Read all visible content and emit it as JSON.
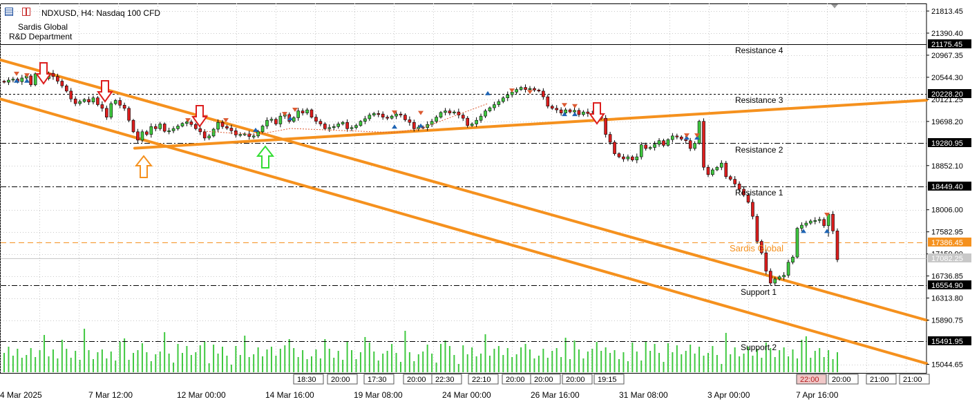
{
  "header": {
    "symbol_line": "NDXUSD, H4:  Nasdaq 100 CFD",
    "company": "Sardis Global",
    "department": "R&D Department"
  },
  "colors": {
    "bull": "#3fc83f",
    "bear": "#dc1e1e",
    "trendline": "#f5911e",
    "arrow_up": "#1e64b4",
    "arrow_down": "#dc5a32",
    "grid": "#c8c8c8"
  },
  "chart_data": {
    "type": "candlestick",
    "price_axis": {
      "min": 14900,
      "max": 21900,
      "ticks": [
        "21813.45",
        "21390.40",
        "20967.35",
        "20544.30",
        "20121.25",
        "19698.20",
        "18852.10",
        "18006.00",
        "17582.95",
        "17159.90",
        "16736.85",
        "16313.80",
        "15890.75",
        "15044.65"
      ]
    },
    "time_axis_labels": [
      "4 Mar 2025",
      "7 Mar 12:00",
      "12 Mar 00:00",
      "14 Mar 16:00",
      "19 Mar 08:00",
      "24 Mar 00:00",
      "26 Mar 16:00",
      "31 Mar 08:00",
      "3 Apr 00:00",
      "7 Apr 16:00"
    ],
    "levels": [
      {
        "name": "Resistance 4",
        "price": 21175.45,
        "label": "21175.45",
        "style": "solid"
      },
      {
        "name": "Resistance 3",
        "price": 20228.2,
        "label": "20228.20",
        "style": "dashed"
      },
      {
        "name": "Resistance 2",
        "price": 19280.95,
        "label": "19280.95",
        "style": "dashdot"
      },
      {
        "name": "Resistance 1",
        "price": 18449.4,
        "label": "18449.40",
        "style": "dashdot"
      },
      {
        "name": "Support 1",
        "price": 16554.9,
        "label": "16554.90",
        "style": "dashdot"
      },
      {
        "name": "Support 2",
        "price": 15491.95,
        "label": "15491.95",
        "style": "dashdot"
      }
    ],
    "sardis_level": {
      "name": "Sardis Global",
      "price": 17386.45,
      "label": "17386.45"
    },
    "current_price": {
      "price": 17082.25,
      "label": "17082.25"
    },
    "session_labels": [
      "18:30",
      "20:00",
      "17:30",
      "20:00",
      "22:30",
      "22:10",
      "20:00",
      "20:00",
      "20:00",
      "19:15",
      "22:00",
      "20:00",
      "21:00",
      "21:00"
    ],
    "closes": [
      20450,
      20490,
      20510,
      20460,
      20530,
      20570,
      20400,
      20610,
      20580,
      20520,
      20620,
      20560,
      20470,
      20380,
      20280,
      20130,
      20040,
      20080,
      20120,
      20070,
      20150,
      20020,
      19950,
      19780,
      20040,
      20100,
      20010,
      19950,
      19720,
      19500,
      19340,
      19500,
      19450,
      19600,
      19560,
      19650,
      19510,
      19520,
      19560,
      19610,
      19660,
      19690,
      19640,
      19560,
      19500,
      19380,
      19420,
      19550,
      19680,
      19600,
      19570,
      19520,
      19440,
      19450,
      19460,
      19410,
      19420,
      19500,
      19610,
      19720,
      19740,
      19650,
      19800,
      19830,
      19700,
      19770,
      19900,
      19860,
      19920,
      19780,
      19700,
      19650,
      19560,
      19580,
      19600,
      19650,
      19680,
      19560,
      19580,
      19620,
      19700,
      19750,
      19820,
      19850,
      19840,
      19780,
      19760,
      19800,
      19840,
      19820,
      19730,
      19680,
      19560,
      19590,
      19580,
      19640,
      19700,
      19780,
      19870,
      19900,
      19860,
      19880,
      19820,
      19760,
      19620,
      19650,
      19720,
      19800,
      19900,
      19960,
      20020,
      20080,
      20150,
      20210,
      20260,
      20310,
      20350,
      20310,
      20330,
      20300,
      20280,
      20170,
      19990,
      19950,
      19920,
      19860,
      19920,
      19880,
      19910,
      19830,
      19880,
      19850,
      19840,
      19810,
      19760,
      19450,
      19300,
      19080,
      19020,
      18980,
      19020,
      18960,
      19020,
      19250,
      19180,
      19200,
      19260,
      19330,
      19240,
      19350,
      19420,
      19400,
      19360,
      19330,
      19180,
      19280,
      19700,
      18820,
      18680,
      18770,
      18820,
      18900,
      18640,
      18590,
      18500,
      18400,
      18290,
      18150,
      17880,
      17400,
      17180,
      16830,
      16600,
      16680,
      16720,
      16750,
      17000,
      17100,
      17650,
      17710,
      17750,
      17790,
      17800,
      17820,
      17700,
      17920,
      17600,
      17050
    ]
  }
}
